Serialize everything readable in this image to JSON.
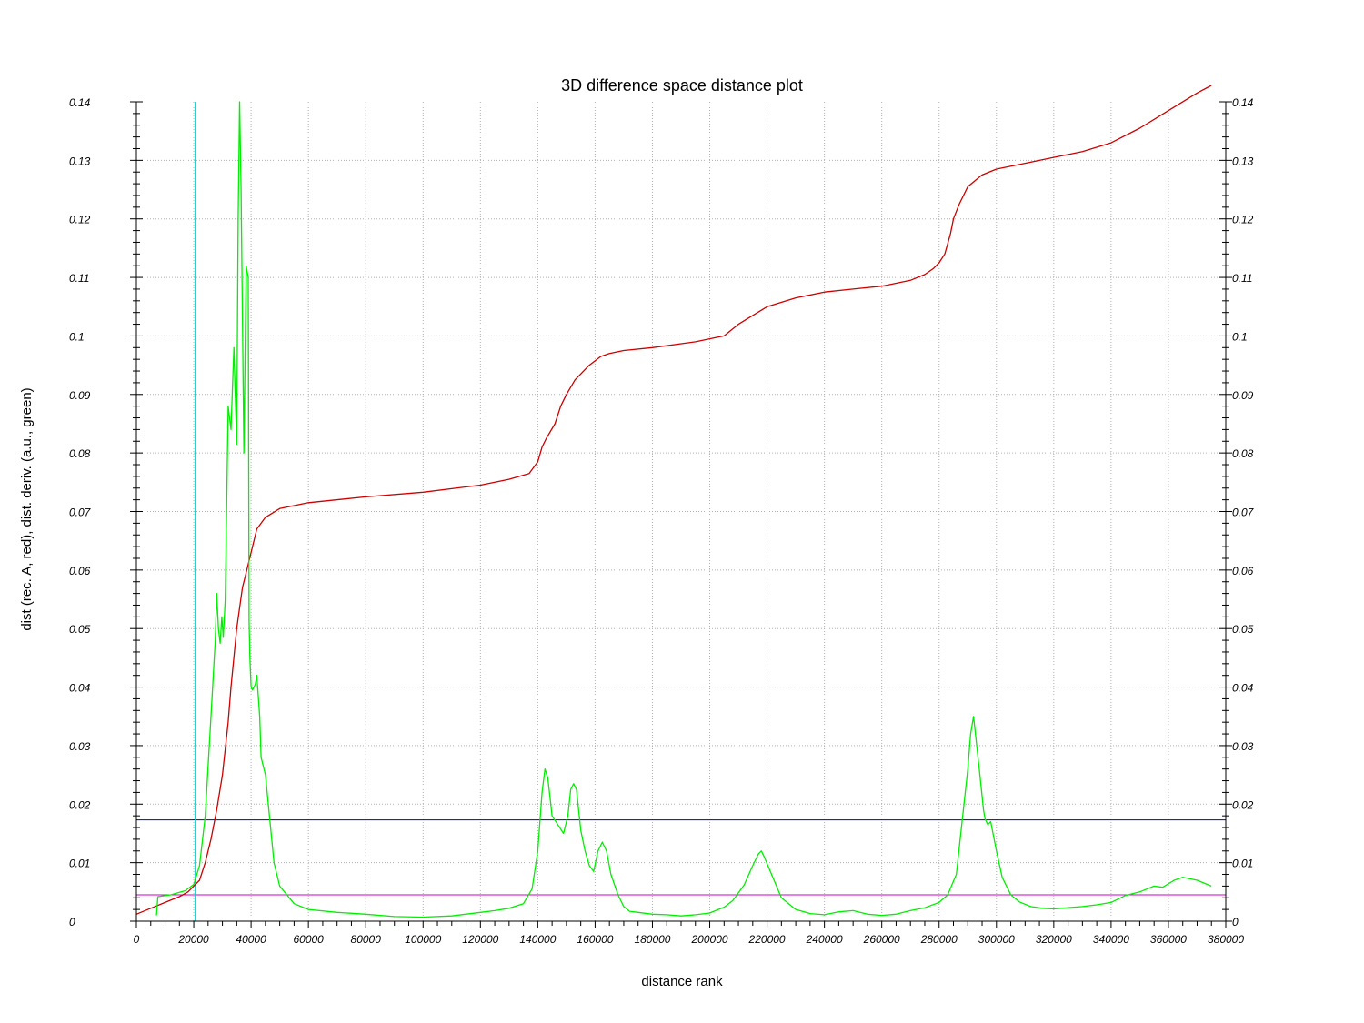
{
  "chart_data": {
    "type": "line",
    "title": "3D difference space distance plot",
    "xlabel": "distance rank",
    "ylabel": "dist (rec. A, red), dist. deriv. (a.u., green)",
    "xlim": [
      0,
      380000
    ],
    "ylim": [
      0,
      0.14
    ],
    "x_ticks": [
      0,
      20000,
      40000,
      60000,
      80000,
      100000,
      120000,
      140000,
      160000,
      180000,
      200000,
      220000,
      240000,
      260000,
      280000,
      300000,
      320000,
      340000,
      360000,
      380000
    ],
    "y_ticks": [
      0,
      0.01,
      0.02,
      0.03,
      0.04,
      0.05,
      0.06,
      0.07,
      0.08,
      0.09,
      0.1,
      0.11,
      0.12,
      0.13,
      0.14
    ],
    "grid": true,
    "right_axis_mirrors_left": true,
    "series": [
      {
        "color": "#cc0000",
        "x": [
          0,
          5000,
          10000,
          15000,
          18000,
          22000,
          24000,
          26000,
          28000,
          30000,
          32000,
          33000,
          35000,
          37000,
          38500,
          40000,
          42000,
          45000,
          50000,
          60000,
          80000,
          100000,
          120000,
          130000,
          137000,
          140000,
          141500,
          143000,
          146000,
          148000,
          150000,
          153000,
          158000,
          162000,
          165000,
          170000,
          180000,
          195000,
          205000,
          210000,
          215000,
          220000,
          230000,
          240000,
          250000,
          260000,
          270000,
          275000,
          278000,
          280000,
          282000,
          284000,
          285000,
          287000,
          290000,
          295000,
          300000,
          310000,
          320000,
          330000,
          340000,
          350000,
          360000,
          370000,
          375000
        ],
        "y": [
          0.0012,
          0.0022,
          0.0032,
          0.0042,
          0.005,
          0.007,
          0.01,
          0.014,
          0.019,
          0.025,
          0.034,
          0.04,
          0.05,
          0.057,
          0.06,
          0.063,
          0.067,
          0.069,
          0.0705,
          0.0715,
          0.0725,
          0.0733,
          0.0745,
          0.0755,
          0.0765,
          0.0785,
          0.081,
          0.0825,
          0.085,
          0.088,
          0.09,
          0.0925,
          0.095,
          0.0965,
          0.097,
          0.0975,
          0.098,
          0.099,
          0.1,
          0.102,
          0.1035,
          0.105,
          0.1065,
          0.1075,
          0.108,
          0.1085,
          0.1095,
          0.1105,
          0.1115,
          0.1125,
          0.114,
          0.1175,
          0.12,
          0.1225,
          0.1255,
          0.1275,
          0.1285,
          0.1295,
          0.1305,
          0.1315,
          0.133,
          0.1355,
          0.1385,
          0.1415,
          0.1428
        ]
      },
      {
        "color": "#00ee00",
        "x": [
          7000,
          7500,
          12000,
          17000,
          20000,
          22000,
          24000,
          26000,
          27500,
          28000,
          28600,
          29200,
          29800,
          30300,
          31000,
          32000,
          33000,
          34000,
          35000,
          35500,
          36000,
          36500,
          37500,
          38300,
          39000,
          39300,
          39600,
          40000,
          40500,
          41500,
          42000,
          43000,
          43500,
          45000,
          48000,
          50000,
          55000,
          60000,
          70000,
          80000,
          90000,
          100000,
          110000,
          120000,
          125000,
          130000,
          135000,
          138000,
          140000,
          141500,
          142500,
          143500,
          145000,
          147000,
          149000,
          150500,
          151500,
          152500,
          153500,
          155000,
          156500,
          158000,
          159500,
          161000,
          162500,
          164000,
          165500,
          168000,
          170000,
          172000,
          175000,
          180000,
          185000,
          190000,
          195000,
          200000,
          205000,
          208000,
          212000,
          215000,
          217000,
          218000,
          219000,
          222000,
          225000,
          230000,
          235000,
          240000,
          245000,
          250000,
          255000,
          260000,
          265000,
          270000,
          275000,
          280000,
          283000,
          286000,
          288000,
          290000,
          291000,
          292000,
          294000,
          295500,
          296000,
          297000,
          298000,
          300000,
          302000,
          305000,
          308000,
          312000,
          316000,
          320000,
          325000,
          330000,
          335000,
          340000,
          345000,
          350000,
          355000,
          358000,
          362000,
          365000,
          370000,
          375000
        ],
        "y": [
          0.001,
          0.0042,
          0.0045,
          0.0052,
          0.0063,
          0.0095,
          0.018,
          0.035,
          0.048,
          0.056,
          0.05,
          0.0475,
          0.052,
          0.0485,
          0.055,
          0.088,
          0.084,
          0.098,
          0.0815,
          0.12,
          0.14,
          0.125,
          0.08,
          0.112,
          0.11,
          0.0515,
          0.045,
          0.04,
          0.0395,
          0.0405,
          0.042,
          0.035,
          0.028,
          0.025,
          0.01,
          0.006,
          0.003,
          0.002,
          0.0015,
          0.0012,
          0.0008,
          0.0007,
          0.0009,
          0.0015,
          0.0018,
          0.0022,
          0.003,
          0.0055,
          0.012,
          0.022,
          0.026,
          0.0245,
          0.018,
          0.0165,
          0.015,
          0.018,
          0.0225,
          0.0235,
          0.0225,
          0.0155,
          0.012,
          0.0095,
          0.0085,
          0.012,
          0.0135,
          0.012,
          0.008,
          0.0045,
          0.0025,
          0.0017,
          0.0015,
          0.0012,
          0.0011,
          0.0009,
          0.0011,
          0.0014,
          0.0024,
          0.0035,
          0.0062,
          0.0095,
          0.0115,
          0.012,
          0.011,
          0.0075,
          0.004,
          0.002,
          0.0013,
          0.0011,
          0.0016,
          0.0018,
          0.0012,
          0.001,
          0.0012,
          0.0018,
          0.0023,
          0.0032,
          0.0045,
          0.008,
          0.017,
          0.026,
          0.032,
          0.035,
          0.026,
          0.019,
          0.0175,
          0.0165,
          0.017,
          0.012,
          0.0075,
          0.0045,
          0.0033,
          0.0025,
          0.0022,
          0.0021,
          0.0023,
          0.0025,
          0.0028,
          0.0032,
          0.0044,
          0.005,
          0.006,
          0.0058,
          0.007,
          0.0075,
          0.007,
          0.006
        ]
      }
    ],
    "reference_lines": {
      "horizontal": [
        {
          "y": 0.0173,
          "color": "#0000cc"
        },
        {
          "y": 0.0045,
          "color": "#cc00cc"
        }
      ],
      "vertical": [
        {
          "x": 20500,
          "color": "#00cccc"
        }
      ]
    }
  }
}
